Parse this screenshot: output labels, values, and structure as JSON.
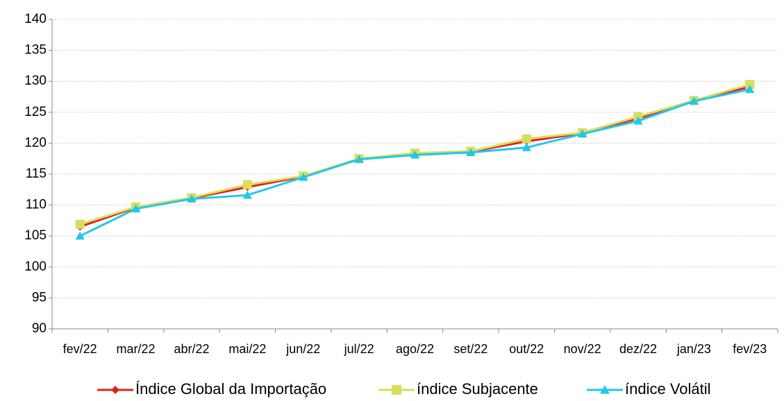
{
  "chart_data": {
    "type": "line",
    "categories": [
      "fev/22",
      "mar/22",
      "abr/22",
      "mai/22",
      "jun/22",
      "jul/22",
      "ago/22",
      "set/22",
      "out/22",
      "nov/22",
      "dez/22",
      "jan/23",
      "fev/23"
    ],
    "series": [
      {
        "name": "Índice Global da Importação",
        "color": "#e0221f",
        "marker": "diamond",
        "values": [
          106.5,
          109.6,
          111.1,
          112.9,
          114.6,
          117.4,
          118.2,
          118.6,
          120.3,
          121.6,
          124.0,
          126.9,
          129.1
        ]
      },
      {
        "name": "índice Subjacente",
        "color": "#d9dd5a",
        "marker": "square",
        "values": [
          106.9,
          109.7,
          111.2,
          113.3,
          114.7,
          117.5,
          118.4,
          118.7,
          120.7,
          121.7,
          124.3,
          126.9,
          129.5
        ]
      },
      {
        "name": "índice Volátil",
        "color": "#1fc6f0",
        "marker": "triangle",
        "values": [
          105.0,
          109.4,
          111.0,
          111.6,
          114.5,
          117.4,
          118.1,
          118.5,
          119.3,
          121.5,
          123.6,
          126.8,
          128.7
        ]
      }
    ],
    "ylim": [
      90,
      140
    ],
    "yticks": [
      90,
      95,
      100,
      105,
      110,
      115,
      120,
      125,
      130,
      135,
      140
    ],
    "grid": true,
    "legend": "bottom"
  }
}
